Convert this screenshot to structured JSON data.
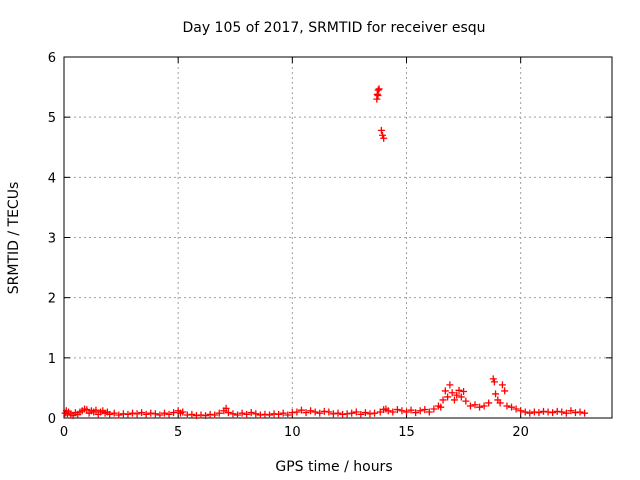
{
  "chart_data": {
    "type": "scatter",
    "title": "Day 105 of 2017, SRMTID for receiver esqu",
    "xlabel": "GPS time / hours",
    "ylabel": "SRMTID / TECUs",
    "xlim": [
      0,
      24
    ],
    "ylim": [
      0,
      6
    ],
    "xticks": [
      0,
      5,
      10,
      15,
      20
    ],
    "yticks": [
      0,
      1,
      2,
      3,
      4,
      5,
      6
    ],
    "grid": true,
    "marker": "+",
    "marker_color": "#ff0000",
    "series": [
      {
        "name": "SRMTID",
        "points": [
          [
            0.05,
            0.08
          ],
          [
            0.1,
            0.12
          ],
          [
            0.15,
            0.05
          ],
          [
            0.2,
            0.1
          ],
          [
            0.3,
            0.07
          ],
          [
            0.4,
            0.04
          ],
          [
            0.5,
            0.09
          ],
          [
            0.6,
            0.06
          ],
          [
            0.7,
            0.1
          ],
          [
            0.8,
            0.12
          ],
          [
            0.9,
            0.15
          ],
          [
            1.0,
            0.14
          ],
          [
            1.1,
            0.08
          ],
          [
            1.2,
            0.12
          ],
          [
            1.3,
            0.1
          ],
          [
            1.4,
            0.13
          ],
          [
            1.5,
            0.06
          ],
          [
            1.6,
            0.1
          ],
          [
            1.7,
            0.12
          ],
          [
            1.8,
            0.08
          ],
          [
            1.9,
            0.1
          ],
          [
            2.0,
            0.06
          ],
          [
            2.2,
            0.08
          ],
          [
            2.4,
            0.05
          ],
          [
            2.6,
            0.07
          ],
          [
            2.8,
            0.06
          ],
          [
            3.0,
            0.08
          ],
          [
            3.2,
            0.07
          ],
          [
            3.4,
            0.09
          ],
          [
            3.6,
            0.06
          ],
          [
            3.8,
            0.08
          ],
          [
            4.0,
            0.07
          ],
          [
            4.2,
            0.05
          ],
          [
            4.4,
            0.08
          ],
          [
            4.6,
            0.06
          ],
          [
            4.8,
            0.09
          ],
          [
            5.0,
            0.12
          ],
          [
            5.1,
            0.08
          ],
          [
            5.2,
            0.1
          ],
          [
            5.4,
            0.05
          ],
          [
            5.6,
            0.06
          ],
          [
            5.8,
            0.04
          ],
          [
            6.0,
            0.05
          ],
          [
            6.2,
            0.04
          ],
          [
            6.4,
            0.06
          ],
          [
            6.6,
            0.05
          ],
          [
            6.8,
            0.08
          ],
          [
            7.0,
            0.12
          ],
          [
            7.1,
            0.16
          ],
          [
            7.2,
            0.09
          ],
          [
            7.4,
            0.07
          ],
          [
            7.6,
            0.05
          ],
          [
            7.8,
            0.08
          ],
          [
            8.0,
            0.06
          ],
          [
            8.2,
            0.09
          ],
          [
            8.4,
            0.07
          ],
          [
            8.6,
            0.05
          ],
          [
            8.8,
            0.06
          ],
          [
            9.0,
            0.05
          ],
          [
            9.2,
            0.07
          ],
          [
            9.4,
            0.06
          ],
          [
            9.6,
            0.08
          ],
          [
            9.8,
            0.05
          ],
          [
            10.0,
            0.09
          ],
          [
            10.2,
            0.1
          ],
          [
            10.4,
            0.13
          ],
          [
            10.6,
            0.09
          ],
          [
            10.8,
            0.12
          ],
          [
            11.0,
            0.1
          ],
          [
            11.2,
            0.08
          ],
          [
            11.4,
            0.11
          ],
          [
            11.6,
            0.1
          ],
          [
            11.8,
            0.07
          ],
          [
            12.0,
            0.08
          ],
          [
            12.2,
            0.06
          ],
          [
            12.4,
            0.07
          ],
          [
            12.6,
            0.08
          ],
          [
            12.8,
            0.1
          ],
          [
            13.0,
            0.06
          ],
          [
            13.2,
            0.09
          ],
          [
            13.4,
            0.07
          ],
          [
            13.6,
            0.08
          ],
          [
            13.7,
            5.3
          ],
          [
            13.72,
            5.38
          ],
          [
            13.76,
            5.45
          ],
          [
            13.8,
            5.47
          ],
          [
            13.75,
            5.36
          ],
          [
            13.9,
            4.78
          ],
          [
            13.95,
            4.7
          ],
          [
            14.0,
            4.65
          ],
          [
            13.85,
            0.1
          ],
          [
            14.0,
            0.14
          ],
          [
            14.1,
            0.15
          ],
          [
            14.2,
            0.12
          ],
          [
            14.4,
            0.1
          ],
          [
            14.6,
            0.14
          ],
          [
            14.8,
            0.12
          ],
          [
            15.0,
            0.1
          ],
          [
            15.2,
            0.13
          ],
          [
            15.4,
            0.09
          ],
          [
            15.6,
            0.12
          ],
          [
            15.8,
            0.14
          ],
          [
            16.0,
            0.1
          ],
          [
            16.2,
            0.15
          ],
          [
            16.4,
            0.2
          ],
          [
            16.5,
            0.18
          ],
          [
            16.6,
            0.3
          ],
          [
            16.7,
            0.45
          ],
          [
            16.8,
            0.35
          ],
          [
            16.9,
            0.55
          ],
          [
            17.0,
            0.42
          ],
          [
            17.1,
            0.3
          ],
          [
            17.2,
            0.38
          ],
          [
            17.3,
            0.46
          ],
          [
            17.4,
            0.35
          ],
          [
            17.5,
            0.44
          ],
          [
            17.6,
            0.28
          ],
          [
            17.8,
            0.2
          ],
          [
            18.0,
            0.22
          ],
          [
            18.2,
            0.18
          ],
          [
            18.4,
            0.2
          ],
          [
            18.6,
            0.25
          ],
          [
            18.8,
            0.65
          ],
          [
            18.85,
            0.6
          ],
          [
            18.9,
            0.4
          ],
          [
            19.0,
            0.3
          ],
          [
            19.1,
            0.25
          ],
          [
            19.2,
            0.55
          ],
          [
            19.3,
            0.45
          ],
          [
            19.4,
            0.2
          ],
          [
            19.6,
            0.18
          ],
          [
            19.8,
            0.15
          ],
          [
            20.0,
            0.12
          ],
          [
            20.2,
            0.1
          ],
          [
            20.4,
            0.08
          ],
          [
            20.6,
            0.1
          ],
          [
            20.8,
            0.09
          ],
          [
            21.0,
            0.11
          ],
          [
            21.2,
            0.1
          ],
          [
            21.4,
            0.09
          ],
          [
            21.6,
            0.11
          ],
          [
            21.8,
            0.1
          ],
          [
            22.0,
            0.08
          ],
          [
            22.2,
            0.12
          ],
          [
            22.4,
            0.09
          ],
          [
            22.6,
            0.1
          ],
          [
            22.8,
            0.08
          ]
        ]
      }
    ]
  }
}
